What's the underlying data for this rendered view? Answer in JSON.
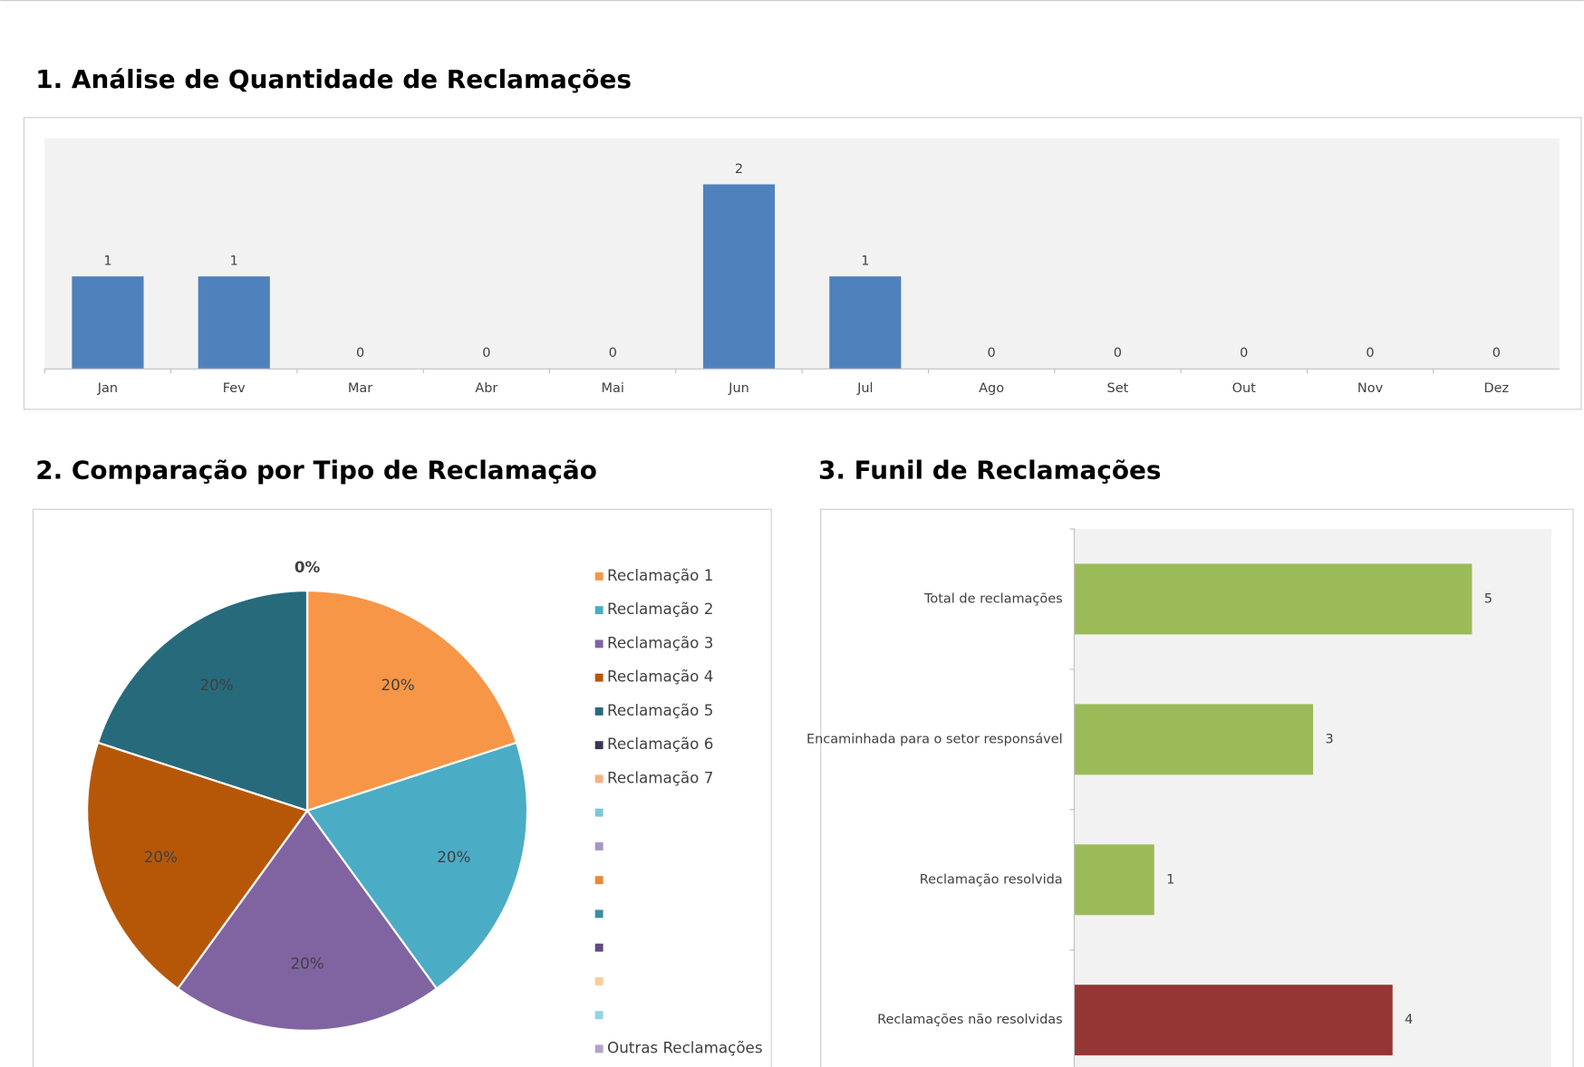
{
  "chart_data": [
    {
      "type": "bar",
      "title": "1. Análise de Quantidade de Reclamações",
      "categories": [
        "Jan",
        "Fev",
        "Mar",
        "Abr",
        "Mai",
        "Jun",
        "Jul",
        "Ago",
        "Set",
        "Out",
        "Nov",
        "Dez"
      ],
      "values": [
        1,
        1,
        0,
        0,
        0,
        2,
        1,
        0,
        0,
        0,
        0,
        0
      ],
      "color": "#4f81bd",
      "ylim": [
        0,
        2.5
      ]
    },
    {
      "type": "pie",
      "title": "2. Comparação por Tipo de Reclamação",
      "categories": [
        "Reclamação 1",
        "Reclamação 2",
        "Reclamação 3",
        "Reclamação 4",
        "Reclamação 5",
        "Reclamação 6",
        "Reclamação 7",
        null,
        null,
        null,
        null,
        null,
        null,
        null,
        "Outras Reclamações"
      ],
      "values": [
        20,
        20,
        20,
        20,
        20,
        0,
        0,
        0,
        0,
        0,
        0,
        0,
        0,
        0,
        0
      ],
      "value_labels": [
        "20%",
        "20%",
        "20%",
        "20%",
        "20%",
        "0%",
        null,
        null,
        null,
        null,
        null,
        null,
        null,
        null,
        null
      ],
      "colors": [
        "#f79646",
        "#4bacc6",
        "#8064a2",
        "#b65708",
        "#276a7c",
        "#3a3550",
        "#f4b183",
        "#7fc7d6",
        "#a796c0",
        "#e68a3a",
        "#3b8ea5",
        "#5f4a80",
        "#f9cc9d",
        "#92d3e2",
        "#b2a2c7"
      ]
    },
    {
      "type": "hbar",
      "title": "3. Funil de Reclamações",
      "categories": [
        "Total de reclamações",
        "Encaminhada para o setor responsável",
        "Reclamação resolvida",
        "Reclamações não resolvidas"
      ],
      "values": [
        5,
        3,
        1,
        4
      ],
      "colors": [
        "#9bbb59",
        "#9bbb59",
        "#9bbb59",
        "#943634"
      ],
      "xlim": [
        0,
        6
      ]
    }
  ]
}
